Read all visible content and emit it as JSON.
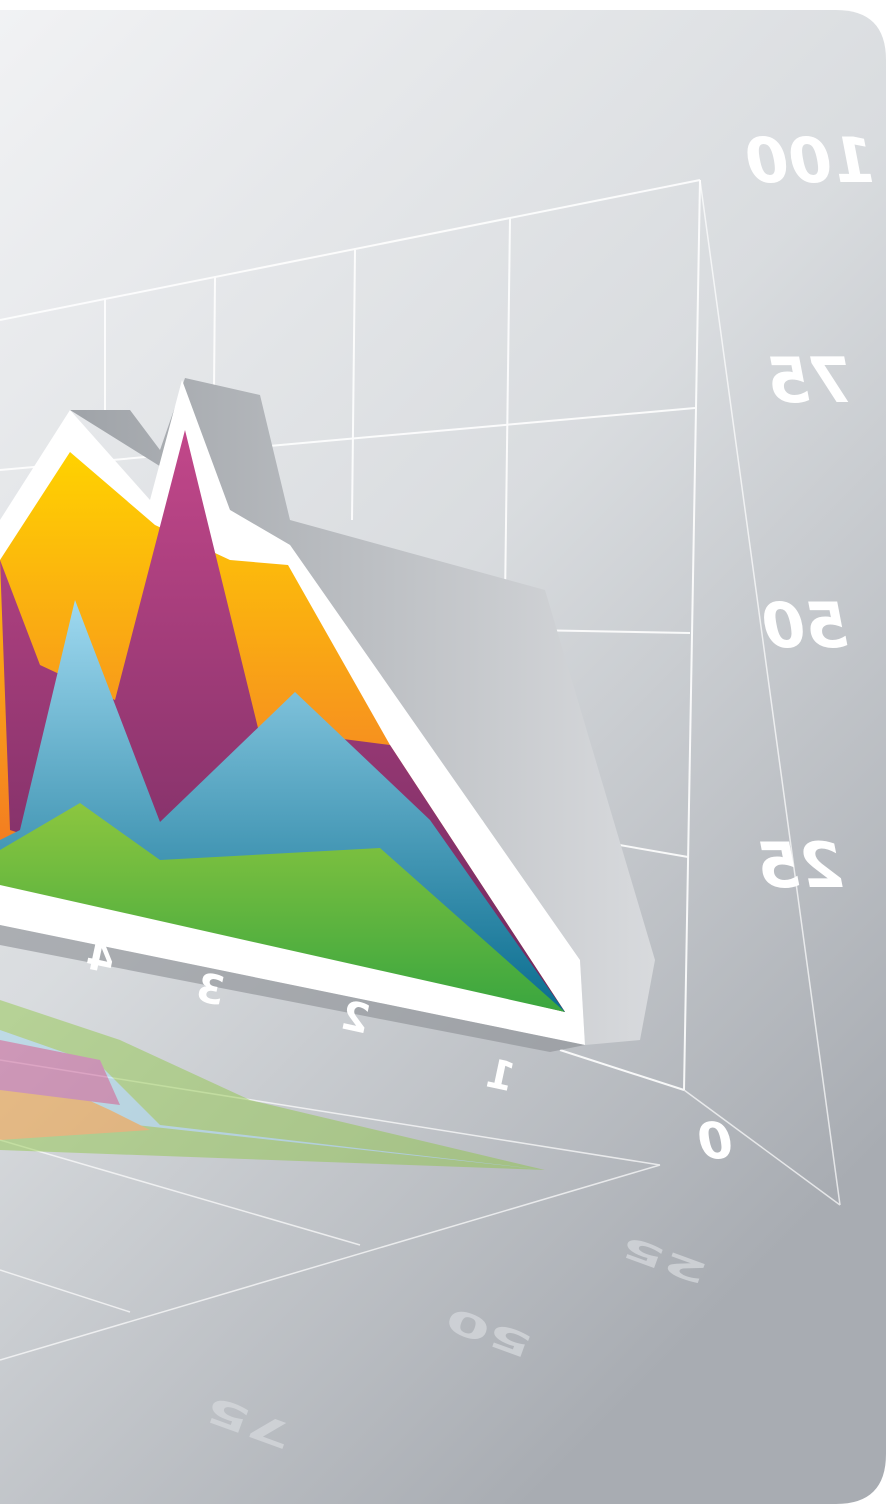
{
  "wall_labels": [
    "100",
    "75",
    "50",
    "25",
    "0"
  ],
  "axis_labels": [
    "1",
    "2",
    "3",
    "4"
  ],
  "floor_labels": [
    "25",
    "50",
    "75"
  ]
}
